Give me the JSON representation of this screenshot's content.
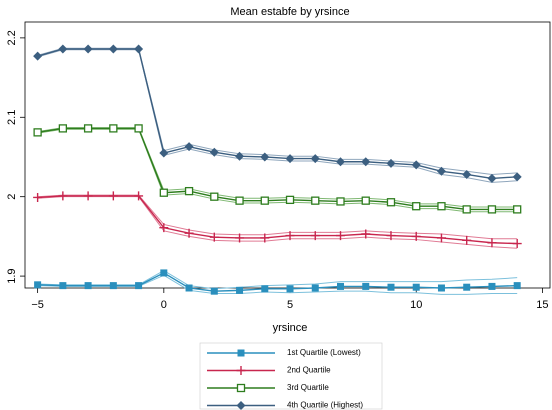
{
  "chart_data": {
    "type": "line",
    "title": "Mean estabfe by yrsince",
    "x_label": "yrsince",
    "x": [
      -5,
      -4,
      -3,
      -2,
      -1,
      0,
      1,
      2,
      3,
      4,
      5,
      6,
      7,
      8,
      9,
      10,
      11,
      12,
      13,
      14
    ],
    "xlim": [
      -5.5,
      15.3
    ],
    "xticks": [
      {
        "value": -5,
        "label": "−5"
      },
      0,
      5,
      10,
      15
    ],
    "ylim": [
      1.885,
      2.22
    ],
    "yticks": [
      1.9,
      2,
      2.1,
      2.2
    ],
    "series": [
      {
        "name": "1st Quartile (Lowest)",
        "color": "#2a8fbd",
        "band_color": "#7cc0dc",
        "marker": "square",
        "values": [
          1.889,
          1.888,
          1.888,
          1.888,
          1.888,
          1.904,
          1.885,
          1.881,
          1.882,
          1.884,
          1.884,
          1.885,
          1.887,
          1.887,
          1.886,
          1.886,
          1.885,
          1.886,
          1.887,
          1.888
        ],
        "upper": [
          1.89,
          1.889,
          1.889,
          1.889,
          1.889,
          1.907,
          1.888,
          1.884,
          1.886,
          1.888,
          1.889,
          1.89,
          1.893,
          1.893,
          1.893,
          1.893,
          1.893,
          1.895,
          1.896,
          1.898
        ],
        "lower": [
          1.888,
          1.887,
          1.887,
          1.887,
          1.887,
          1.901,
          1.882,
          1.878,
          1.878,
          1.88,
          1.879,
          1.88,
          1.881,
          1.881,
          1.879,
          1.879,
          1.877,
          1.877,
          1.878,
          1.878
        ]
      },
      {
        "name": "2nd Quartile",
        "color": "#c8264e",
        "band_color": "#e07a94",
        "marker": "plus",
        "values": [
          1.999,
          2.001,
          2.001,
          2.001,
          2.001,
          1.961,
          1.954,
          1.949,
          1.948,
          1.948,
          1.951,
          1.951,
          1.951,
          1.953,
          1.951,
          1.95,
          1.948,
          1.945,
          1.942,
          1.941
        ],
        "upper": [
          2.0,
          2.002,
          2.002,
          2.002,
          2.002,
          1.965,
          1.958,
          1.953,
          1.952,
          1.952,
          1.955,
          1.955,
          1.955,
          1.957,
          1.955,
          1.954,
          1.953,
          1.95,
          1.947,
          1.947
        ],
        "lower": [
          1.998,
          2.0,
          2.0,
          2.0,
          2.0,
          1.957,
          1.95,
          1.945,
          1.944,
          1.944,
          1.947,
          1.947,
          1.947,
          1.949,
          1.947,
          1.946,
          1.943,
          1.94,
          1.937,
          1.935
        ]
      },
      {
        "name": "3rd Quartile",
        "color": "#2e7d1e",
        "band_color": "#7fb872",
        "marker": "hollow-square",
        "values": [
          2.081,
          2.086,
          2.086,
          2.086,
          2.086,
          2.005,
          2.007,
          2.0,
          1.995,
          1.995,
          1.996,
          1.995,
          1.994,
          1.995,
          1.993,
          1.988,
          1.988,
          1.984,
          1.984,
          1.984
        ],
        "upper": [
          2.082,
          2.087,
          2.087,
          2.087,
          2.087,
          2.008,
          2.01,
          2.003,
          1.998,
          1.998,
          1.999,
          1.998,
          1.997,
          1.998,
          1.996,
          1.991,
          1.991,
          1.987,
          1.987,
          1.987
        ],
        "lower": [
          2.08,
          2.085,
          2.085,
          2.085,
          2.085,
          2.002,
          2.004,
          1.997,
          1.992,
          1.992,
          1.993,
          1.992,
          1.991,
          1.992,
          1.99,
          1.985,
          1.985,
          1.981,
          1.981,
          1.981
        ]
      },
      {
        "name": "4th Quartile (Highest)",
        "color": "#3c5f80",
        "band_color": "#8fa6bc",
        "marker": "diamond",
        "values": [
          2.177,
          2.186,
          2.186,
          2.186,
          2.186,
          2.055,
          2.063,
          2.056,
          2.051,
          2.05,
          2.048,
          2.048,
          2.044,
          2.044,
          2.042,
          2.04,
          2.032,
          2.028,
          2.023,
          2.025
        ],
        "upper": [
          2.178,
          2.187,
          2.187,
          2.187,
          2.187,
          2.058,
          2.066,
          2.059,
          2.054,
          2.053,
          2.051,
          2.051,
          2.047,
          2.047,
          2.045,
          2.043,
          2.036,
          2.032,
          2.028,
          2.03
        ],
        "lower": [
          2.176,
          2.185,
          2.185,
          2.185,
          2.185,
          2.052,
          2.06,
          2.053,
          2.048,
          2.047,
          2.045,
          2.045,
          2.041,
          2.041,
          2.039,
          2.037,
          2.028,
          2.024,
          2.018,
          2.02
        ]
      }
    ]
  }
}
